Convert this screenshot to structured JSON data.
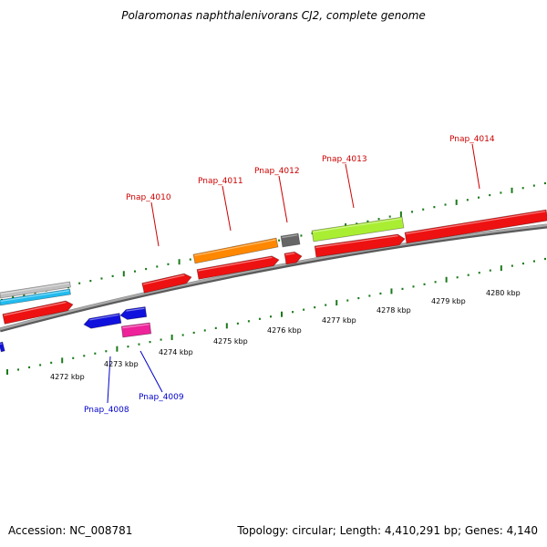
{
  "title": "Polaromonas naphthalenivorans CJ2, complete genome",
  "footer": {
    "accession": "Accession: NC_008781",
    "summary": "Topology: circular; Length: 4,410,291 bp; Genes: 4,140"
  },
  "colors": {
    "backbone": "#888888",
    "tick": "#1a7a1a",
    "forward_label": "#cc0000",
    "reverse_label": "#0000cc"
  },
  "scale_labels": [
    "4272 kbp",
    "4273 kbp",
    "4274 kbp",
    "4275 kbp",
    "4276 kbp",
    "4277 kbp",
    "4278 kbp",
    "4279 kbp",
    "4280 kbp"
  ],
  "gene_labels": [
    {
      "text": "Pnap_4010",
      "strand": "forward"
    },
    {
      "text": "Pnap_4011",
      "strand": "forward"
    },
    {
      "text": "Pnap_4012",
      "strand": "forward"
    },
    {
      "text": "Pnap_4013",
      "strand": "forward"
    },
    {
      "text": "Pnap_4014",
      "strand": "forward"
    },
    {
      "text": "Pnap_4008",
      "strand": "reverse"
    },
    {
      "text": "Pnap_4009",
      "strand": "reverse"
    }
  ],
  "features": [
    {
      "name": "gray-feature",
      "color": "#c0c0c0"
    },
    {
      "name": "cyan-feature",
      "color": "#22bbee"
    },
    {
      "name": "red-gene-left",
      "color": "#ee1111"
    },
    {
      "name": "pnap-4010-gene",
      "color": "#ee1111"
    },
    {
      "name": "pnap-4011-orange-feature",
      "color": "#ff8800"
    },
    {
      "name": "pnap-4011-gene",
      "color": "#ee1111"
    },
    {
      "name": "pnap-4012-dark-feature",
      "color": "#666666"
    },
    {
      "name": "pnap-4012-gene",
      "color": "#ee1111"
    },
    {
      "name": "pnap-4013-green-feature",
      "color": "#aaee33"
    },
    {
      "name": "pnap-4013-gene",
      "color": "#ee1111"
    },
    {
      "name": "pnap-4014-gene",
      "color": "#ee1111"
    },
    {
      "name": "blue-gene-edge",
      "color": "#1111dd"
    },
    {
      "name": "pnap-4008-gene",
      "color": "#1111dd"
    },
    {
      "name": "pnap-4009-gene",
      "color": "#1111dd"
    },
    {
      "name": "pnap-4009-pink-feature",
      "color": "#ee2299"
    }
  ]
}
